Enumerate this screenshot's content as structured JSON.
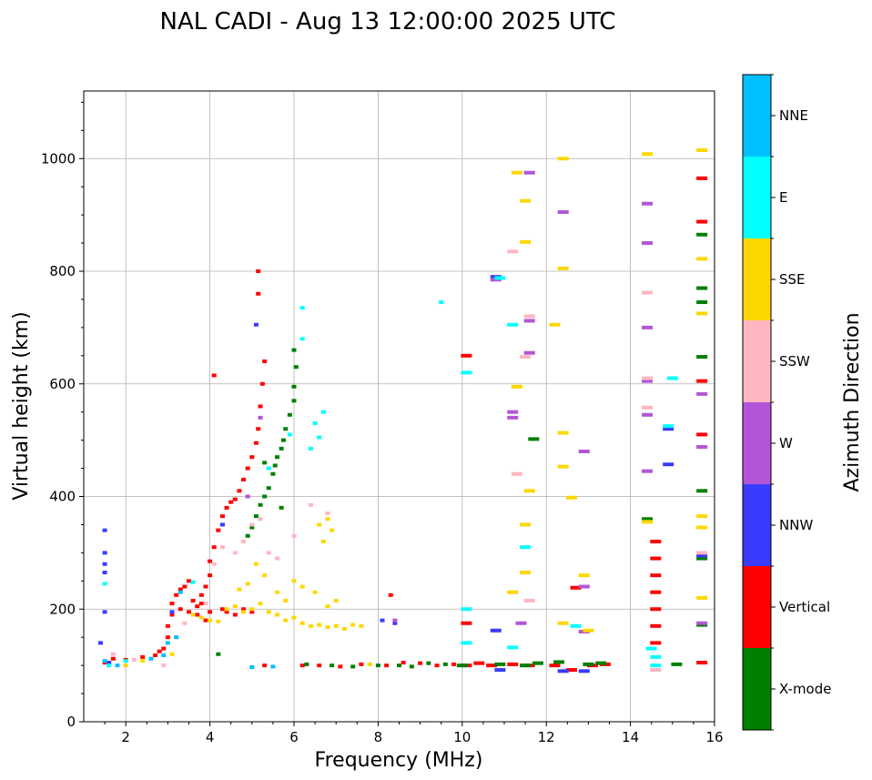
{
  "chart_data": {
    "type": "scatter",
    "title": "NAL CADI - Aug 13 12:00:00 2025 UTC",
    "xlabel": "Frequency (MHz)",
    "ylabel": "Virtual height (km)",
    "xlim": [
      1,
      16
    ],
    "ylim": [
      0,
      1120
    ],
    "xticks": [
      2,
      4,
      6,
      8,
      10,
      12,
      14,
      16
    ],
    "yticks": [
      0,
      200,
      400,
      600,
      800,
      1000
    ],
    "grid": true,
    "colorbar": {
      "label": "Azimuth Direction",
      "categories": [
        {
          "name": "X-mode",
          "color": "#008000"
        },
        {
          "name": "Vertical",
          "color": "#ff0000"
        },
        {
          "name": "NNW",
          "color": "#3a3aff"
        },
        {
          "name": "W",
          "color": "#b355d6"
        },
        {
          "name": "SSW",
          "color": "#ffb6c1"
        },
        {
          "name": "SSE",
          "color": "#ffd700"
        },
        {
          "name": "E",
          "color": "#00ffff"
        },
        {
          "name": "NNE",
          "color": "#00bfff"
        }
      ]
    },
    "series": [
      {
        "name": "Vertical",
        "points": [
          [
            1.5,
            105
          ],
          [
            1.7,
            112
          ],
          [
            2.0,
            110
          ],
          [
            2.4,
            115
          ],
          [
            2.7,
            118
          ],
          [
            2.8,
            125
          ],
          [
            2.9,
            130
          ],
          [
            3.0,
            150
          ],
          [
            3.0,
            170
          ],
          [
            3.1,
            190
          ],
          [
            3.1,
            210
          ],
          [
            3.2,
            225
          ],
          [
            3.3,
            235
          ],
          [
            3.4,
            240
          ],
          [
            3.5,
            250
          ],
          [
            3.6,
            215
          ],
          [
            3.7,
            205
          ],
          [
            3.8,
            210
          ],
          [
            3.8,
            225
          ],
          [
            3.9,
            240
          ],
          [
            4.0,
            260
          ],
          [
            4.0,
            285
          ],
          [
            4.1,
            310
          ],
          [
            4.2,
            340
          ],
          [
            4.3,
            365
          ],
          [
            4.4,
            380
          ],
          [
            4.5,
            390
          ],
          [
            4.6,
            395
          ],
          [
            4.7,
            410
          ],
          [
            4.8,
            430
          ],
          [
            4.9,
            450
          ],
          [
            5.0,
            470
          ],
          [
            5.1,
            495
          ],
          [
            5.15,
            520
          ],
          [
            5.2,
            560
          ],
          [
            5.25,
            600
          ],
          [
            5.3,
            640
          ],
          [
            5.15,
            760
          ],
          [
            5.15,
            800
          ],
          [
            4.1,
            615
          ],
          [
            4.3,
            200
          ],
          [
            4.4,
            195
          ],
          [
            4.6,
            190
          ],
          [
            4.8,
            200
          ],
          [
            5.0,
            195
          ],
          [
            3.3,
            200
          ],
          [
            3.5,
            195
          ],
          [
            3.7,
            190
          ],
          [
            3.9,
            180
          ],
          [
            4.0,
            195
          ],
          [
            5.3,
            100
          ],
          [
            6.2,
            100
          ],
          [
            6.6,
            100
          ],
          [
            7.1,
            98
          ],
          [
            7.6,
            102
          ],
          [
            8.2,
            100
          ],
          [
            8.6,
            105
          ],
          [
            9.0,
            104
          ],
          [
            9.4,
            100
          ],
          [
            9.8,
            102
          ],
          [
            10.1,
            100
          ],
          [
            10.4,
            104
          ],
          [
            10.7,
            100
          ],
          [
            11.2,
            102
          ],
          [
            11.6,
            100
          ],
          [
            12.2,
            100
          ],
          [
            12.6,
            92
          ],
          [
            13.1,
            100
          ],
          [
            13.4,
            102
          ],
          [
            10.1,
            650
          ],
          [
            10.1,
            175
          ],
          [
            14.6,
            320
          ],
          [
            14.6,
            290
          ],
          [
            14.6,
            260
          ],
          [
            14.6,
            230
          ],
          [
            14.6,
            200
          ],
          [
            14.6,
            170
          ],
          [
            14.6,
            140
          ],
          [
            15.7,
            965
          ],
          [
            15.7,
            888
          ],
          [
            15.7,
            605
          ],
          [
            15.7,
            510
          ],
          [
            15.7,
            105
          ],
          [
            12.7,
            238
          ],
          [
            8.3,
            225
          ]
        ]
      },
      {
        "name": "X-mode",
        "points": [
          [
            4.2,
            120
          ],
          [
            4.9,
            330
          ],
          [
            5.0,
            345
          ],
          [
            5.1,
            365
          ],
          [
            5.2,
            385
          ],
          [
            5.3,
            400
          ],
          [
            5.4,
            415
          ],
          [
            5.5,
            440
          ],
          [
            5.55,
            455
          ],
          [
            5.6,
            470
          ],
          [
            5.7,
            485
          ],
          [
            5.75,
            500
          ],
          [
            5.8,
            520
          ],
          [
            5.9,
            545
          ],
          [
            6.0,
            570
          ],
          [
            6.0,
            595
          ],
          [
            6.05,
            630
          ],
          [
            6.0,
            660
          ],
          [
            5.3,
            460
          ],
          [
            5.7,
            380
          ],
          [
            6.3,
            102
          ],
          [
            6.9,
            100
          ],
          [
            7.4,
            98
          ],
          [
            8.0,
            100
          ],
          [
            8.5,
            100
          ],
          [
            8.8,
            98
          ],
          [
            9.2,
            104
          ],
          [
            9.6,
            102
          ],
          [
            10.0,
            100
          ],
          [
            10.9,
            102
          ],
          [
            11.5,
            100
          ],
          [
            11.8,
            104
          ],
          [
            12.3,
            106
          ],
          [
            13.0,
            102
          ],
          [
            13.3,
            104
          ],
          [
            14.4,
            360
          ],
          [
            15.1,
            102
          ],
          [
            15.7,
            865
          ],
          [
            15.7,
            770
          ],
          [
            15.7,
            745
          ],
          [
            15.7,
            648
          ],
          [
            15.7,
            410
          ],
          [
            15.7,
            290
          ],
          [
            15.7,
            172
          ],
          [
            11.7,
            502
          ]
        ]
      },
      {
        "name": "NNW",
        "points": [
          [
            1.5,
            340
          ],
          [
            1.5,
            300
          ],
          [
            1.5,
            280
          ],
          [
            1.5,
            265
          ],
          [
            1.5,
            195
          ],
          [
            1.4,
            140
          ],
          [
            1.6,
            105
          ],
          [
            8.1,
            180
          ],
          [
            8.4,
            175
          ],
          [
            10.8,
            790
          ],
          [
            10.8,
            162
          ],
          [
            10.9,
            92
          ],
          [
            12.4,
            90
          ],
          [
            14.9,
            520
          ],
          [
            14.9,
            457
          ],
          [
            15.7,
            295
          ],
          [
            12.9,
            90
          ],
          [
            5.1,
            705
          ],
          [
            3.1,
            195
          ],
          [
            4.3,
            350
          ]
        ]
      },
      {
        "name": "W",
        "points": [
          [
            10.8,
            785
          ],
          [
            11.2,
            550
          ],
          [
            11.2,
            540
          ],
          [
            11.6,
            975
          ],
          [
            11.6,
            712
          ],
          [
            11.6,
            655
          ],
          [
            11.4,
            175
          ],
          [
            12.4,
            905
          ],
          [
            12.9,
            480
          ],
          [
            12.9,
            240
          ],
          [
            12.9,
            160
          ],
          [
            14.4,
            920
          ],
          [
            14.4,
            850
          ],
          [
            14.4,
            700
          ],
          [
            14.4,
            605
          ],
          [
            14.4,
            545
          ],
          [
            14.4,
            445
          ],
          [
            15.7,
            488
          ],
          [
            15.7,
            582
          ],
          [
            15.7,
            175
          ],
          [
            8.4,
            180
          ],
          [
            4.9,
            400
          ],
          [
            5.2,
            540
          ]
        ]
      },
      {
        "name": "SSW",
        "points": [
          [
            11.2,
            835
          ],
          [
            11.3,
            440
          ],
          [
            11.5,
            648
          ],
          [
            11.6,
            720
          ],
          [
            11.6,
            215
          ],
          [
            14.4,
            610
          ],
          [
            14.4,
            762
          ],
          [
            14.4,
            558
          ],
          [
            14.6,
            92
          ],
          [
            15.7,
            300
          ],
          [
            4.6,
            300
          ],
          [
            4.8,
            320
          ],
          [
            5.0,
            350
          ],
          [
            5.2,
            360
          ],
          [
            5.4,
            300
          ],
          [
            5.6,
            290
          ],
          [
            6.0,
            330
          ],
          [
            6.4,
            385
          ],
          [
            6.8,
            370
          ],
          [
            3.9,
            210
          ],
          [
            4.1,
            280
          ],
          [
            4.3,
            310
          ],
          [
            1.7,
            120
          ],
          [
            2.2,
            110
          ],
          [
            2.9,
            100
          ],
          [
            3.4,
            175
          ]
        ]
      },
      {
        "name": "SSE",
        "points": [
          [
            3.6,
            190
          ],
          [
            3.8,
            185
          ],
          [
            4.0,
            180
          ],
          [
            4.2,
            178
          ],
          [
            4.4,
            200
          ],
          [
            4.6,
            205
          ],
          [
            4.8,
            195
          ],
          [
            5.0,
            200
          ],
          [
            5.2,
            210
          ],
          [
            5.4,
            195
          ],
          [
            5.6,
            190
          ],
          [
            5.8,
            180
          ],
          [
            6.0,
            185
          ],
          [
            6.2,
            175
          ],
          [
            6.4,
            170
          ],
          [
            6.6,
            172
          ],
          [
            6.8,
            168
          ],
          [
            7.0,
            170
          ],
          [
            7.2,
            165
          ],
          [
            7.4,
            172
          ],
          [
            7.6,
            170
          ],
          [
            6.6,
            350
          ],
          [
            6.8,
            360
          ],
          [
            6.9,
            340
          ],
          [
            6.7,
            320
          ],
          [
            6.5,
            230
          ],
          [
            6.2,
            240
          ],
          [
            6.0,
            250
          ],
          [
            5.8,
            215
          ],
          [
            5.6,
            230
          ],
          [
            6.8,
            205
          ],
          [
            7.0,
            215
          ],
          [
            5.1,
            280
          ],
          [
            5.3,
            260
          ],
          [
            4.9,
            245
          ],
          [
            4.7,
            235
          ],
          [
            2.0,
            100
          ],
          [
            2.4,
            108
          ],
          [
            3.1,
            120
          ],
          [
            7.8,
            102
          ],
          [
            11.3,
            975
          ],
          [
            11.5,
            925
          ],
          [
            11.5,
            852
          ],
          [
            11.3,
            595
          ],
          [
            11.5,
            350
          ],
          [
            11.5,
            265
          ],
          [
            11.2,
            230
          ],
          [
            11.6,
            410
          ],
          [
            12.2,
            705
          ],
          [
            12.4,
            1000
          ],
          [
            12.4,
            805
          ],
          [
            12.4,
            513
          ],
          [
            12.4,
            453
          ],
          [
            12.4,
            175
          ],
          [
            12.6,
            398
          ],
          [
            12.9,
            260
          ],
          [
            13.0,
            162
          ],
          [
            14.4,
            1008
          ],
          [
            14.4,
            355
          ],
          [
            15.7,
            1015
          ],
          [
            15.7,
            822
          ],
          [
            15.7,
            725
          ],
          [
            15.7,
            365
          ],
          [
            15.7,
            345
          ],
          [
            15.7,
            220
          ]
        ]
      },
      {
        "name": "E",
        "points": [
          [
            6.2,
            735
          ],
          [
            6.2,
            680
          ],
          [
            6.5,
            530
          ],
          [
            6.6,
            505
          ],
          [
            6.7,
            550
          ],
          [
            5.9,
            510
          ],
          [
            6.4,
            485
          ],
          [
            1.5,
            245
          ],
          [
            1.6,
            100
          ],
          [
            2.0,
            108
          ],
          [
            9.5,
            745
          ],
          [
            10.1,
            620
          ],
          [
            10.1,
            200
          ],
          [
            10.1,
            140
          ],
          [
            11.2,
            705
          ],
          [
            11.2,
            132
          ],
          [
            11.5,
            310
          ],
          [
            12.7,
            170
          ],
          [
            14.5,
            130
          ],
          [
            14.6,
            115
          ],
          [
            14.6,
            100
          ],
          [
            15.0,
            610
          ],
          [
            14.9,
            525
          ],
          [
            10.9,
            788
          ],
          [
            3.6,
            248
          ],
          [
            5.4,
            450
          ]
        ]
      },
      {
        "name": "NNE",
        "points": [
          [
            1.5,
            108
          ],
          [
            1.8,
            100
          ],
          [
            2.6,
            112
          ],
          [
            2.9,
            118
          ],
          [
            3.0,
            140
          ],
          [
            3.2,
            150
          ],
          [
            5.0,
            97
          ],
          [
            5.5,
            98
          ],
          [
            3.3,
            230
          ]
        ]
      }
    ]
  }
}
